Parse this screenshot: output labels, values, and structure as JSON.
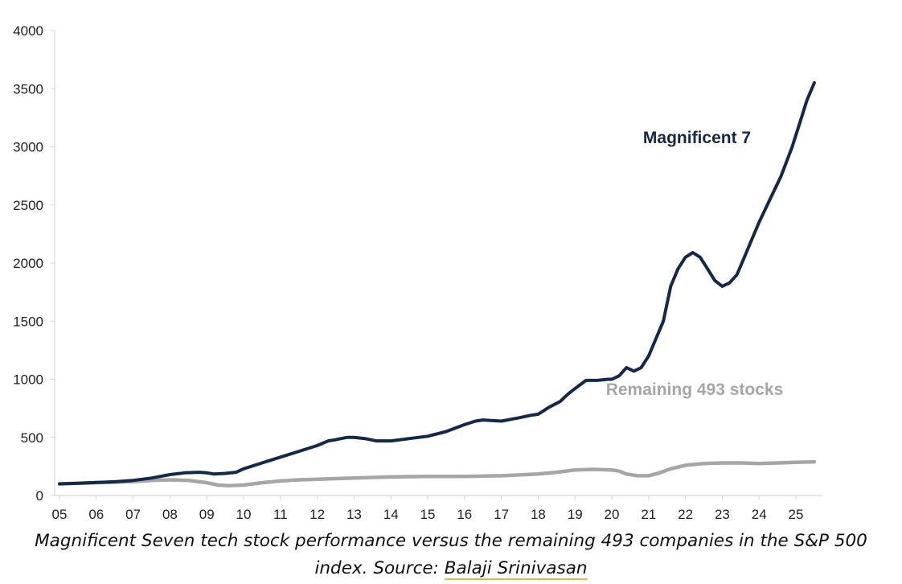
{
  "chart_data": {
    "type": "line",
    "ylim": [
      0,
      4000
    ],
    "y_ticks": [
      "0",
      "500",
      "1000",
      "1500",
      "2000",
      "2500",
      "3000",
      "3500",
      "4000"
    ],
    "x_tick_labels": [
      "05",
      "06",
      "07",
      "08",
      "09",
      "10",
      "11",
      "12",
      "13",
      "14",
      "15",
      "16",
      "17",
      "18",
      "19",
      "20",
      "21",
      "22",
      "23",
      "24",
      "25"
    ],
    "x_range": [
      2005,
      2025.5
    ],
    "grid": false,
    "series": [
      {
        "name": "Magnificent 7",
        "color": "#14284b",
        "x": [
          2005,
          2005.5,
          2006,
          2006.5,
          2007,
          2007.5,
          2008,
          2008.4,
          2008.8,
          2009,
          2009.2,
          2009.5,
          2009.8,
          2010,
          2010.5,
          2011,
          2011.5,
          2012,
          2012.3,
          2012.5,
          2012.8,
          2013,
          2013.3,
          2013.6,
          2014,
          2014.5,
          2015,
          2015.5,
          2016,
          2016.3,
          2016.5,
          2017,
          2017.5,
          2017.8,
          2018,
          2018.3,
          2018.6,
          2018.8,
          2019,
          2019.3,
          2019.6,
          2019.9,
          2020,
          2020.2,
          2020.4,
          2020.6,
          2020.8,
          2021,
          2021.2,
          2021.4,
          2021.6,
          2021.8,
          2022,
          2022.2,
          2022.4,
          2022.6,
          2022.8,
          2023,
          2023.2,
          2023.4,
          2023.6,
          2023.8,
          2024,
          2024.3,
          2024.6,
          2024.9,
          2025.1,
          2025.3,
          2025.5
        ],
        "values": [
          100,
          105,
          112,
          118,
          130,
          150,
          180,
          195,
          200,
          195,
          185,
          190,
          200,
          230,
          280,
          330,
          380,
          430,
          470,
          480,
          500,
          500,
          490,
          470,
          470,
          490,
          510,
          550,
          610,
          640,
          650,
          640,
          670,
          690,
          700,
          760,
          810,
          870,
          920,
          990,
          990,
          1000,
          1000,
          1030,
          1100,
          1070,
          1100,
          1200,
          1350,
          1500,
          1800,
          1950,
          2050,
          2090,
          2050,
          1950,
          1850,
          1800,
          1830,
          1900,
          2050,
          2200,
          2350,
          2550,
          2750,
          3000,
          3200,
          3400,
          3550
        ]
      },
      {
        "name": "Remaining 493 stocks",
        "color": "#a6a6a6",
        "x": [
          2005,
          2006,
          2007,
          2007.5,
          2008,
          2008.5,
          2009,
          2009.3,
          2009.6,
          2010,
          2010.5,
          2011,
          2011.5,
          2012,
          2012.5,
          2013,
          2014,
          2015,
          2016,
          2017,
          2018,
          2018.5,
          2019,
          2019.5,
          2020,
          2020.2,
          2020.4,
          2020.7,
          2021,
          2021.3,
          2021.6,
          2022,
          2022.5,
          2023,
          2023.5,
          2024,
          2024.5,
          2025,
          2025.5
        ],
        "values": [
          100,
          110,
          120,
          130,
          135,
          130,
          110,
          90,
          85,
          90,
          110,
          125,
          135,
          140,
          145,
          150,
          160,
          165,
          165,
          170,
          185,
          200,
          220,
          225,
          220,
          210,
          185,
          170,
          170,
          195,
          230,
          260,
          275,
          280,
          280,
          275,
          280,
          285,
          290
        ]
      }
    ]
  },
  "caption": {
    "line1": "Magnificent Seven tech stock performance versus the remaining 493 companies in the S&P 500",
    "line2_prefix": "index. Source: ",
    "source_link": "Balaji Srinivasan"
  }
}
